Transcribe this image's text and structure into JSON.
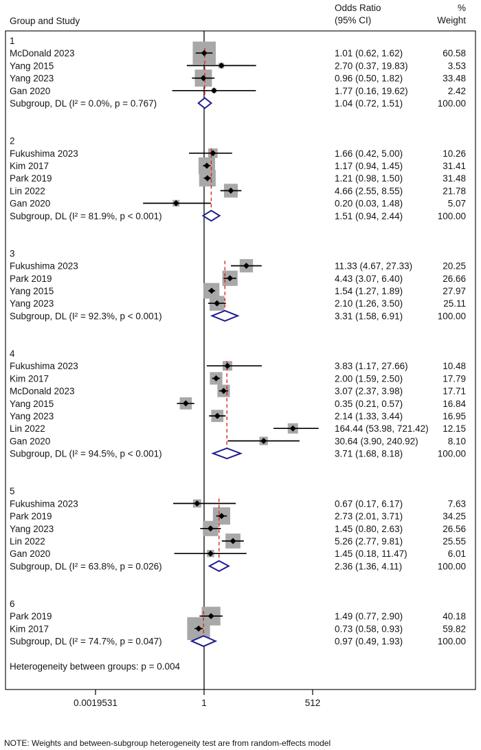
{
  "header": {
    "col_study": "Group and Study",
    "col_or": "Odds Ratio",
    "col_ci": "(95% CI)",
    "col_pct": "%",
    "col_weight": "Weight"
  },
  "axis": {
    "ticks": [
      {
        "label": "0.0019531",
        "value": 0.0019531
      },
      {
        "label": "1",
        "value": 1
      },
      {
        "label": "512",
        "value": 512
      }
    ]
  },
  "footer": {
    "note": "NOTE: Weights and between-subgroup heterogeneity test are from random-effects model"
  },
  "colors": {
    "weight_box": "#a8a8a8",
    "point_marker": "#000000",
    "ci_line": "#000000",
    "subgroup_diamond": "#1d1d8f",
    "subgroup_dashed_line": "#e02417",
    "frame": "#000000",
    "null_line": "#000000"
  },
  "chart_data": {
    "type": "forest",
    "x_scale": "log",
    "null_value": 1,
    "xlim": [
      0.0019531,
      512
    ],
    "heterogeneity_note": "Heterogeneity between groups: p = 0.004",
    "groups": [
      {
        "label": "1",
        "studies": [
          {
            "label": "McDonald 2023",
            "or": 1.01,
            "lo": 0.62,
            "hi": 1.62,
            "display": "1.01 (0.62, 1.62)",
            "weight": 60.58,
            "weight_display": "60.58"
          },
          {
            "label": "Yang 2015",
            "or": 2.7,
            "lo": 0.37,
            "hi": 19.83,
            "display": "2.70 (0.37, 19.83)",
            "weight": 3.53,
            "weight_display": "3.53"
          },
          {
            "label": "Yang 2023",
            "or": 0.96,
            "lo": 0.5,
            "hi": 1.82,
            "display": "0.96 (0.50, 1.82)",
            "weight": 33.48,
            "weight_display": "33.48"
          },
          {
            "label": "Gan 2020",
            "or": 1.77,
            "lo": 0.16,
            "hi": 19.62,
            "display": "1.77 (0.16, 19.62)",
            "weight": 2.42,
            "weight_display": "2.42"
          }
        ],
        "subgroup": {
          "label": "Subgroup, DL (I² = 0.0%, p = 0.767)",
          "or": 1.04,
          "lo": 0.72,
          "hi": 1.51,
          "display": "1.04 (0.72, 1.51)",
          "weight_display": "100.00"
        }
      },
      {
        "label": "2",
        "studies": [
          {
            "label": "Fukushima 2023",
            "or": 1.66,
            "lo": 0.42,
            "hi": 5.0,
            "display": "1.66 (0.42, 5.00)",
            "weight": 10.26,
            "weight_display": "10.26"
          },
          {
            "label": "Kim 2017",
            "or": 1.17,
            "lo": 0.94,
            "hi": 1.45,
            "display": "1.17 (0.94, 1.45)",
            "weight": 31.41,
            "weight_display": "31.41"
          },
          {
            "label": "Park 2019",
            "or": 1.21,
            "lo": 0.98,
            "hi": 1.5,
            "display": "1.21 (0.98, 1.50)",
            "weight": 31.48,
            "weight_display": "31.48"
          },
          {
            "label": "Lin 2022",
            "or": 4.66,
            "lo": 2.55,
            "hi": 8.55,
            "display": "4.66 (2.55, 8.55)",
            "weight": 21.78,
            "weight_display": "21.78"
          },
          {
            "label": "Gan 2020",
            "or": 0.2,
            "lo": 0.03,
            "hi": 1.48,
            "display": "0.20 (0.03, 1.48)",
            "weight": 5.07,
            "weight_display": "5.07"
          }
        ],
        "subgroup": {
          "label": "Subgroup, DL (I² = 81.9%, p < 0.001)",
          "or": 1.51,
          "lo": 0.94,
          "hi": 2.44,
          "display": "1.51 (0.94, 2.44)",
          "weight_display": "100.00"
        }
      },
      {
        "label": "3",
        "studies": [
          {
            "label": "Fukushima 2023",
            "or": 11.33,
            "lo": 4.67,
            "hi": 27.33,
            "display": "11.33 (4.67, 27.33)",
            "weight": 20.25,
            "weight_display": "20.25"
          },
          {
            "label": "Park 2019",
            "or": 4.43,
            "lo": 3.07,
            "hi": 6.4,
            "display": "4.43 (3.07, 6.40)",
            "weight": 26.66,
            "weight_display": "26.66"
          },
          {
            "label": "Yang 2015",
            "or": 1.54,
            "lo": 1.27,
            "hi": 1.89,
            "display": "1.54 (1.27, 1.89)",
            "weight": 27.97,
            "weight_display": "27.97"
          },
          {
            "label": "Yang 2023",
            "or": 2.1,
            "lo": 1.26,
            "hi": 3.5,
            "display": "2.10 (1.26, 3.50)",
            "weight": 25.11,
            "weight_display": "25.11"
          }
        ],
        "subgroup": {
          "label": "Subgroup, DL (I² = 92.3%, p < 0.001)",
          "or": 3.31,
          "lo": 1.58,
          "hi": 6.91,
          "display": "3.31 (1.58, 6.91)",
          "weight_display": "100.00"
        }
      },
      {
        "label": "4",
        "studies": [
          {
            "label": "Fukushima 2023",
            "or": 3.83,
            "lo": 1.17,
            "hi": 27.66,
            "display": "3.83 (1.17, 27.66)",
            "weight": 10.48,
            "weight_display": "10.48"
          },
          {
            "label": "Kim 2017",
            "or": 2.0,
            "lo": 1.59,
            "hi": 2.5,
            "display": "2.00 (1.59, 2.50)",
            "weight": 17.79,
            "weight_display": "17.79"
          },
          {
            "label": "McDonald 2023",
            "or": 3.07,
            "lo": 2.37,
            "hi": 3.98,
            "display": "3.07 (2.37, 3.98)",
            "weight": 17.71,
            "weight_display": "17.71"
          },
          {
            "label": "Yang 2015",
            "or": 0.35,
            "lo": 0.21,
            "hi": 0.57,
            "display": "0.35 (0.21, 0.57)",
            "weight": 16.84,
            "weight_display": "16.84"
          },
          {
            "label": "Yang 2023",
            "or": 2.14,
            "lo": 1.33,
            "hi": 3.44,
            "display": "2.14 (1.33, 3.44)",
            "weight": 16.95,
            "weight_display": "16.95"
          },
          {
            "label": "Lin 2022",
            "or": 164.44,
            "lo": 53.98,
            "hi": 721.42,
            "display": "164.44 (53.98, 721.42)",
            "weight": 12.15,
            "weight_display": "12.15"
          },
          {
            "label": "Gan 2020",
            "or": 30.64,
            "lo": 3.9,
            "hi": 240.92,
            "display": "30.64 (3.90, 240.92)",
            "weight": 8.1,
            "weight_display": "8.10"
          }
        ],
        "subgroup": {
          "label": "Subgroup, DL (I² = 94.5%, p < 0.001)",
          "or": 3.71,
          "lo": 1.68,
          "hi": 8.18,
          "display": "3.71 (1.68, 8.18)",
          "weight_display": "100.00"
        }
      },
      {
        "label": "5",
        "studies": [
          {
            "label": "Fukushima 2023",
            "or": 0.67,
            "lo": 0.17,
            "hi": 6.17,
            "display": "0.67 (0.17, 6.17)",
            "weight": 7.63,
            "weight_display": "7.63"
          },
          {
            "label": "Park 2019",
            "or": 2.73,
            "lo": 2.01,
            "hi": 3.71,
            "display": "2.73 (2.01, 3.71)",
            "weight": 34.25,
            "weight_display": "34.25"
          },
          {
            "label": "Yang 2023",
            "or": 1.45,
            "lo": 0.8,
            "hi": 2.63,
            "display": "1.45 (0.80, 2.63)",
            "weight": 26.56,
            "weight_display": "26.56"
          },
          {
            "label": "Lin 2022",
            "or": 5.26,
            "lo": 2.77,
            "hi": 9.81,
            "display": "5.26 (2.77, 9.81)",
            "weight": 25.55,
            "weight_display": "25.55"
          },
          {
            "label": "Gan 2020",
            "or": 1.45,
            "lo": 0.18,
            "hi": 11.47,
            "display": "1.45 (0.18, 11.47)",
            "weight": 6.01,
            "weight_display": "6.01"
          }
        ],
        "subgroup": {
          "label": "Subgroup, DL (I² = 63.8%, p = 0.026)",
          "or": 2.36,
          "lo": 1.36,
          "hi": 4.11,
          "display": "2.36 (1.36, 4.11)",
          "weight_display": "100.00"
        }
      },
      {
        "label": "6",
        "studies": [
          {
            "label": "Park 2019",
            "or": 1.49,
            "lo": 0.77,
            "hi": 2.9,
            "display": "1.49 (0.77, 2.90)",
            "weight": 40.18,
            "weight_display": "40.18"
          },
          {
            "label": "Kim 2017",
            "or": 0.73,
            "lo": 0.58,
            "hi": 0.93,
            "display": "0.73 (0.58, 0.93)",
            "weight": 59.82,
            "weight_display": "59.82"
          }
        ],
        "subgroup": {
          "label": "Subgroup, DL (I² = 74.7%, p = 0.047)",
          "or": 0.97,
          "lo": 0.49,
          "hi": 1.93,
          "display": "0.97 (0.49, 1.93)",
          "weight_display": "100.00"
        }
      }
    ]
  }
}
